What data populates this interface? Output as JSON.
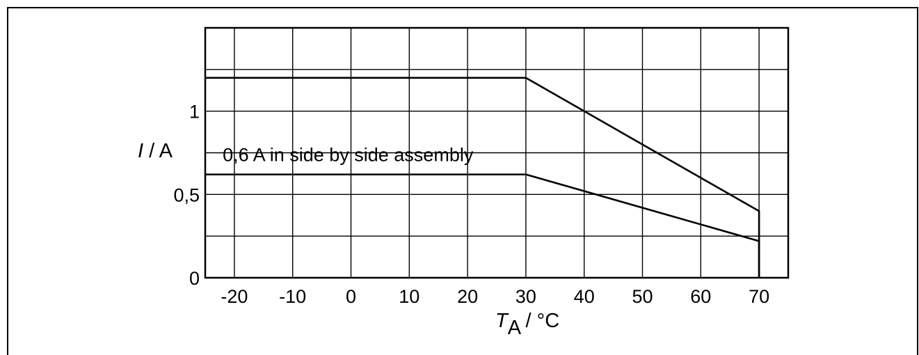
{
  "chart_data": {
    "type": "line",
    "title": "",
    "xlabel": {
      "main": "T",
      "sub": "A",
      "unit": " / °C"
    },
    "ylabel": {
      "var": "I",
      "unit": " / A"
    },
    "xlim": [
      -25,
      75
    ],
    "ylim": [
      0,
      1.5
    ],
    "x_ticks": [
      -20,
      -10,
      0,
      10,
      20,
      30,
      40,
      50,
      60,
      70
    ],
    "x_tick_labels": [
      "-20",
      "-10",
      "0",
      "10",
      "20",
      "30",
      "40",
      "50",
      "60",
      "70"
    ],
    "y_ticks": [
      0,
      0.5,
      1
    ],
    "y_tick_labels": [
      "0",
      "0,5",
      "1"
    ],
    "x_grid": [
      -20,
      -10,
      0,
      10,
      20,
      30,
      40,
      50,
      60,
      70
    ],
    "y_grid": [
      0.25,
      0.5,
      0.75,
      1,
      1.25
    ],
    "grid": true,
    "series": [
      {
        "x": [
          -25,
          30,
          70,
          70
        ],
        "y": [
          1.2,
          1.2,
          0.4,
          0
        ]
      },
      {
        "x": [
          -25,
          30,
          70,
          70
        ],
        "y": [
          0.62,
          0.62,
          0.22,
          0
        ]
      }
    ],
    "annotations": [
      {
        "text": "0,6 A in side by side assembly",
        "x": -22,
        "y": 0.7
      }
    ],
    "colors": {
      "line": "#000000",
      "grid": "#000000",
      "background": "#ffffff"
    }
  }
}
